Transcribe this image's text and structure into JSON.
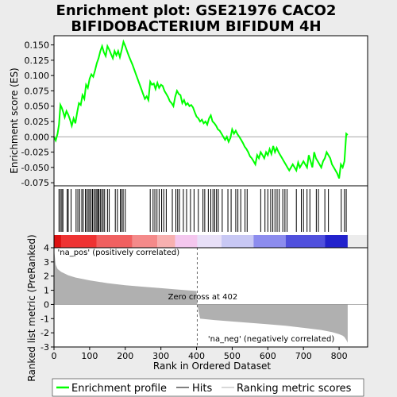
{
  "chart_data": {
    "type": "line",
    "title": "Enrichment plot: GSE21976 CACO2\nBIFIDOBACTERIUM BIFIDUM 4H",
    "xlabel": "Rank in Ordered Dataset",
    "xlim": [
      0,
      880
    ],
    "x_ticks": [
      "0",
      "100",
      "200",
      "300",
      "400",
      "500",
      "600",
      "700",
      "800"
    ],
    "x_tick_values": [
      0,
      100,
      200,
      300,
      400,
      500,
      600,
      700,
      800
    ],
    "top_panel": {
      "ylabel": "Enrichment score (ES)",
      "ylim": [
        -0.08,
        0.165
      ],
      "y_ticks": [
        "0.150",
        "0.125",
        "0.100",
        "0.075",
        "0.050",
        "0.025",
        "0.000",
        "-0.025",
        "-0.050",
        "-0.075"
      ],
      "y_tick_values": [
        0.15,
        0.125,
        0.1,
        0.075,
        0.05,
        0.025,
        0.0,
        -0.025,
        -0.05,
        -0.075
      ],
      "grid": false,
      "series": [
        {
          "name": "Enrichment profile",
          "color": "#00ff00",
          "x": [
            0,
            5,
            10,
            14,
            18,
            22,
            26,
            30,
            35,
            40,
            45,
            50,
            55,
            60,
            65,
            70,
            75,
            80,
            85,
            90,
            95,
            100,
            105,
            110,
            115,
            120,
            125,
            130,
            135,
            140,
            145,
            150,
            155,
            160,
            165,
            170,
            175,
            180,
            185,
            190,
            195,
            200,
            205,
            210,
            215,
            220,
            225,
            230,
            235,
            240,
            245,
            250,
            255,
            260,
            265,
            270,
            275,
            280,
            285,
            290,
            295,
            300,
            305,
            310,
            315,
            320,
            325,
            330,
            335,
            340,
            345,
            350,
            355,
            360,
            365,
            370,
            375,
            380,
            385,
            390,
            395,
            400,
            405,
            410,
            415,
            420,
            425,
            430,
            435,
            440,
            445,
            450,
            455,
            460,
            465,
            470,
            475,
            480,
            485,
            490,
            495,
            500,
            505,
            510,
            515,
            520,
            525,
            530,
            535,
            540,
            545,
            550,
            555,
            560,
            565,
            570,
            575,
            580,
            585,
            590,
            595,
            600,
            605,
            610,
            615,
            620,
            625,
            630,
            635,
            640,
            645,
            650,
            655,
            660,
            665,
            670,
            675,
            680,
            685,
            690,
            695,
            700,
            705,
            710,
            715,
            720,
            725,
            730,
            735,
            740,
            745,
            750,
            755,
            760,
            765,
            770,
            775,
            780,
            785,
            790,
            795,
            800,
            805,
            810,
            815,
            820,
            824
          ],
          "y": [
            0.0,
            -0.006,
            0.005,
            0.02,
            0.052,
            0.047,
            0.04,
            0.032,
            0.042,
            0.036,
            0.028,
            0.018,
            0.03,
            0.022,
            0.04,
            0.055,
            0.052,
            0.068,
            0.062,
            0.085,
            0.08,
            0.095,
            0.102,
            0.098,
            0.108,
            0.12,
            0.128,
            0.14,
            0.148,
            0.138,
            0.132,
            0.148,
            0.142,
            0.135,
            0.128,
            0.14,
            0.133,
            0.14,
            0.13,
            0.142,
            0.155,
            0.148,
            0.14,
            0.132,
            0.125,
            0.118,
            0.11,
            0.102,
            0.094,
            0.086,
            0.078,
            0.07,
            0.062,
            0.066,
            0.06,
            0.09,
            0.085,
            0.087,
            0.078,
            0.088,
            0.08,
            0.085,
            0.083,
            0.075,
            0.07,
            0.065,
            0.058,
            0.055,
            0.05,
            0.065,
            0.075,
            0.07,
            0.068,
            0.055,
            0.06,
            0.052,
            0.055,
            0.05,
            0.052,
            0.048,
            0.04,
            0.033,
            0.03,
            0.025,
            0.028,
            0.022,
            0.025,
            0.02,
            0.03,
            0.035,
            0.025,
            0.022,
            0.018,
            0.012,
            0.01,
            0.005,
            0.0,
            -0.005,
            0.0,
            -0.008,
            -0.002,
            0.012,
            0.005,
            0.01,
            0.004,
            0.0,
            -0.005,
            -0.01,
            -0.016,
            -0.02,
            -0.025,
            -0.032,
            -0.035,
            -0.04,
            -0.045,
            -0.03,
            -0.035,
            -0.025,
            -0.03,
            -0.035,
            -0.025,
            -0.03,
            -0.02,
            -0.028,
            -0.015,
            -0.025,
            -0.018,
            -0.025,
            -0.03,
            -0.035,
            -0.04,
            -0.045,
            -0.05,
            -0.055,
            -0.05,
            -0.045,
            -0.05,
            -0.055,
            -0.042,
            -0.05,
            -0.045,
            -0.04,
            -0.045,
            -0.05,
            -0.03,
            -0.04,
            -0.05,
            -0.025,
            -0.035,
            -0.04,
            -0.045,
            -0.05,
            -0.04,
            -0.035,
            -0.025,
            -0.03,
            -0.035,
            -0.045,
            -0.05,
            -0.055,
            -0.06,
            -0.068,
            -0.045,
            -0.05,
            -0.04,
            0.005,
            0.003
          ]
        }
      ],
      "hits": [
        14,
        18,
        22,
        25,
        37,
        40,
        48,
        62,
        67,
        72,
        78,
        82,
        88,
        92,
        96,
        100,
        104,
        108,
        112,
        116,
        120,
        123,
        126,
        130,
        134,
        138,
        142,
        150,
        155,
        172,
        178,
        186,
        190,
        194,
        200,
        270,
        278,
        283,
        289,
        295,
        302,
        308,
        315,
        332,
        342,
        347,
        352,
        363,
        372,
        383,
        393,
        405,
        418,
        423,
        433,
        440,
        446,
        451,
        456,
        461,
        472,
        488,
        497,
        510,
        516,
        524,
        536,
        542,
        580,
        592,
        600,
        608,
        614,
        620,
        626,
        632,
        642,
        648,
        654,
        680,
        694,
        700,
        710,
        718,
        736,
        742,
        760,
        770,
        806,
        815,
        820
      ]
    },
    "bottom_panel": {
      "ylabel": "Ranked list metric (PreRanked)",
      "ylim": [
        -3,
        4
      ],
      "y_ticks": [
        "4",
        "3",
        "2",
        "1",
        "0",
        "-1",
        "-2",
        "-3"
      ],
      "y_tick_values": [
        4,
        3,
        2,
        1,
        0,
        -1,
        -2,
        -3
      ],
      "fill_color": "#b0b0b0",
      "metric_profile": {
        "x": [
          0,
          5,
          10,
          20,
          40,
          60,
          100,
          150,
          200,
          250,
          300,
          350,
          400,
          402,
          410,
          450,
          500,
          550,
          600,
          650,
          700,
          750,
          780,
          800,
          810,
          815,
          820,
          824
        ],
        "y": [
          3.9,
          2.8,
          2.5,
          2.3,
          2.05,
          1.9,
          1.7,
          1.5,
          1.35,
          1.25,
          1.15,
          1.05,
          0.95,
          0.0,
          -1.0,
          -1.1,
          -1.2,
          -1.3,
          -1.4,
          -1.5,
          -1.65,
          -1.8,
          -1.95,
          -2.1,
          -2.2,
          -2.3,
          -2.5,
          -2.7
        ]
      }
    },
    "color_bar": {
      "segments": [
        {
          "x0": 0,
          "x1": 20,
          "color": "#dd1111"
        },
        {
          "x0": 20,
          "x1": 120,
          "color": "#ee3333"
        },
        {
          "x0": 120,
          "x1": 220,
          "color": "#f06060"
        },
        {
          "x0": 220,
          "x1": 290,
          "color": "#f48a8a"
        },
        {
          "x0": 290,
          "x1": 340,
          "color": "#f7b0b0"
        },
        {
          "x0": 340,
          "x1": 402,
          "color": "#f4c7ee"
        },
        {
          "x0": 402,
          "x1": 470,
          "color": "#e8e0f8"
        },
        {
          "x0": 470,
          "x1": 560,
          "color": "#c8c8f4"
        },
        {
          "x0": 560,
          "x1": 650,
          "color": "#8c8cee"
        },
        {
          "x0": 650,
          "x1": 760,
          "color": "#5050dd"
        },
        {
          "x0": 760,
          "x1": 824,
          "color": "#2222cc"
        }
      ]
    },
    "annotations": {
      "pos_label": "'na_pos' (positively correlated)",
      "neg_label": "'na_neg' (negatively correlated)",
      "zero_cross": "Zero cross at 402"
    },
    "legend": {
      "position": "bottom",
      "entries": [
        {
          "label": "Enrichment profile",
          "color": "#00ff00"
        },
        {
          "label": "Hits",
          "color": "#000000"
        },
        {
          "label": "Ranking metric scores",
          "color": "#b0b0b0"
        }
      ]
    }
  }
}
